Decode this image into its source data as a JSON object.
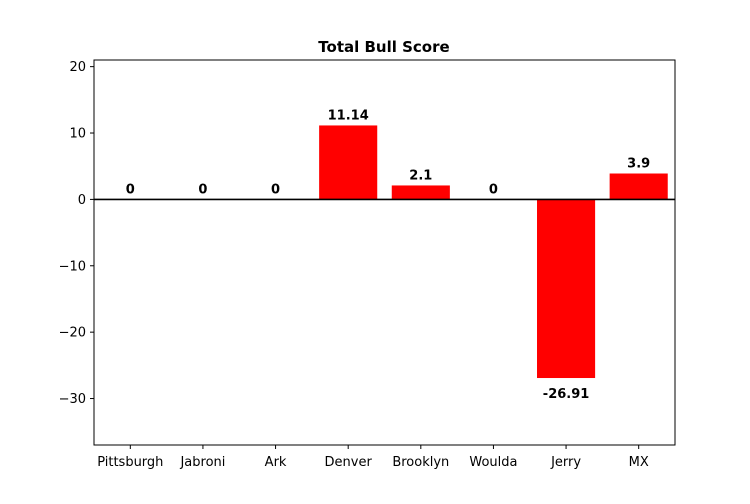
{
  "chart_data": {
    "type": "bar",
    "title": "Total Bull Score",
    "xlabel": "",
    "ylabel": "",
    "categories": [
      "Pittsburgh",
      "Jabroni",
      "Ark",
      "Denver",
      "Brooklyn",
      "Woulda",
      "Jerry",
      "MX"
    ],
    "values": [
      0,
      0,
      0,
      11.14,
      2.1,
      0,
      -26.91,
      3.9
    ],
    "data_labels": [
      "0",
      "0",
      "0",
      "11.14",
      "2.1",
      "0",
      "-26.91",
      "3.9"
    ],
    "ylim": [
      -37,
      21
    ],
    "yticks": [
      -30,
      -20,
      -10,
      0,
      10,
      20
    ],
    "ytick_labels": [
      "−30",
      "−20",
      "−10",
      "0",
      "10",
      "20"
    ],
    "bar_color": "#ff0000",
    "zero_line": true,
    "grid": false,
    "legend": false
  }
}
